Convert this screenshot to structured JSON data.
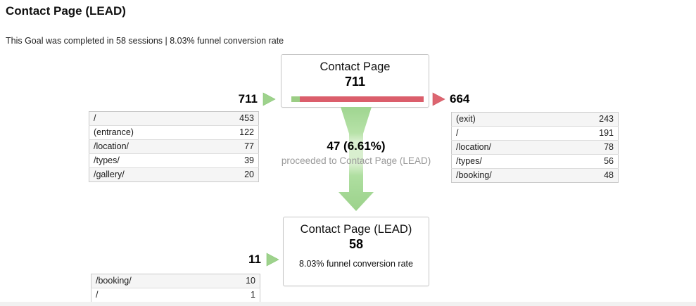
{
  "header": {
    "title": "Contact Page (LEAD)",
    "subtitle": "This Goal was completed in 58 sessions | 8.03% funnel conversion rate"
  },
  "colors": {
    "continue_green": "#9ed28c",
    "exit_red": "#dd6570",
    "bar_green": "#9bcd84",
    "bar_red": "#db5e6b"
  },
  "chart_data": {
    "type": "funnel",
    "steps": [
      {
        "name": "Contact Page",
        "count": 711,
        "entered": 711,
        "exited": 664,
        "proceeded": 47
      },
      {
        "name": "Contact Page (LEAD)",
        "count": 58,
        "entered": 11
      }
    ],
    "conversion_rate": "8.03%"
  },
  "funnel": {
    "steps": [
      {
        "name": "Contact Page",
        "count": "711",
        "bar_continued_pct": 6.61,
        "inflow": {
          "total": "711",
          "rows": [
            {
              "label": "/",
              "value": "453"
            },
            {
              "label": "(entrance)",
              "value": "122"
            },
            {
              "label": "/location/",
              "value": "77"
            },
            {
              "label": "/types/",
              "value": "39"
            },
            {
              "label": "/gallery/",
              "value": "20"
            }
          ]
        },
        "outflow": {
          "total": "664",
          "rows": [
            {
              "label": "(exit)",
              "value": "243"
            },
            {
              "label": "/",
              "value": "191"
            },
            {
              "label": "/location/",
              "value": "78"
            },
            {
              "label": "/types/",
              "value": "56"
            },
            {
              "label": "/booking/",
              "value": "48"
            }
          ]
        },
        "proceeded": {
          "count": "47 (6.61%)",
          "description": "proceeded to Contact Page (LEAD)"
        }
      },
      {
        "name": "Contact Page (LEAD)",
        "count": "58",
        "note": "8.03% funnel conversion rate",
        "inflow": {
          "total": "11",
          "rows": [
            {
              "label": "/booking/",
              "value": "10"
            },
            {
              "label": "/",
              "value": "1"
            }
          ]
        }
      }
    ]
  }
}
